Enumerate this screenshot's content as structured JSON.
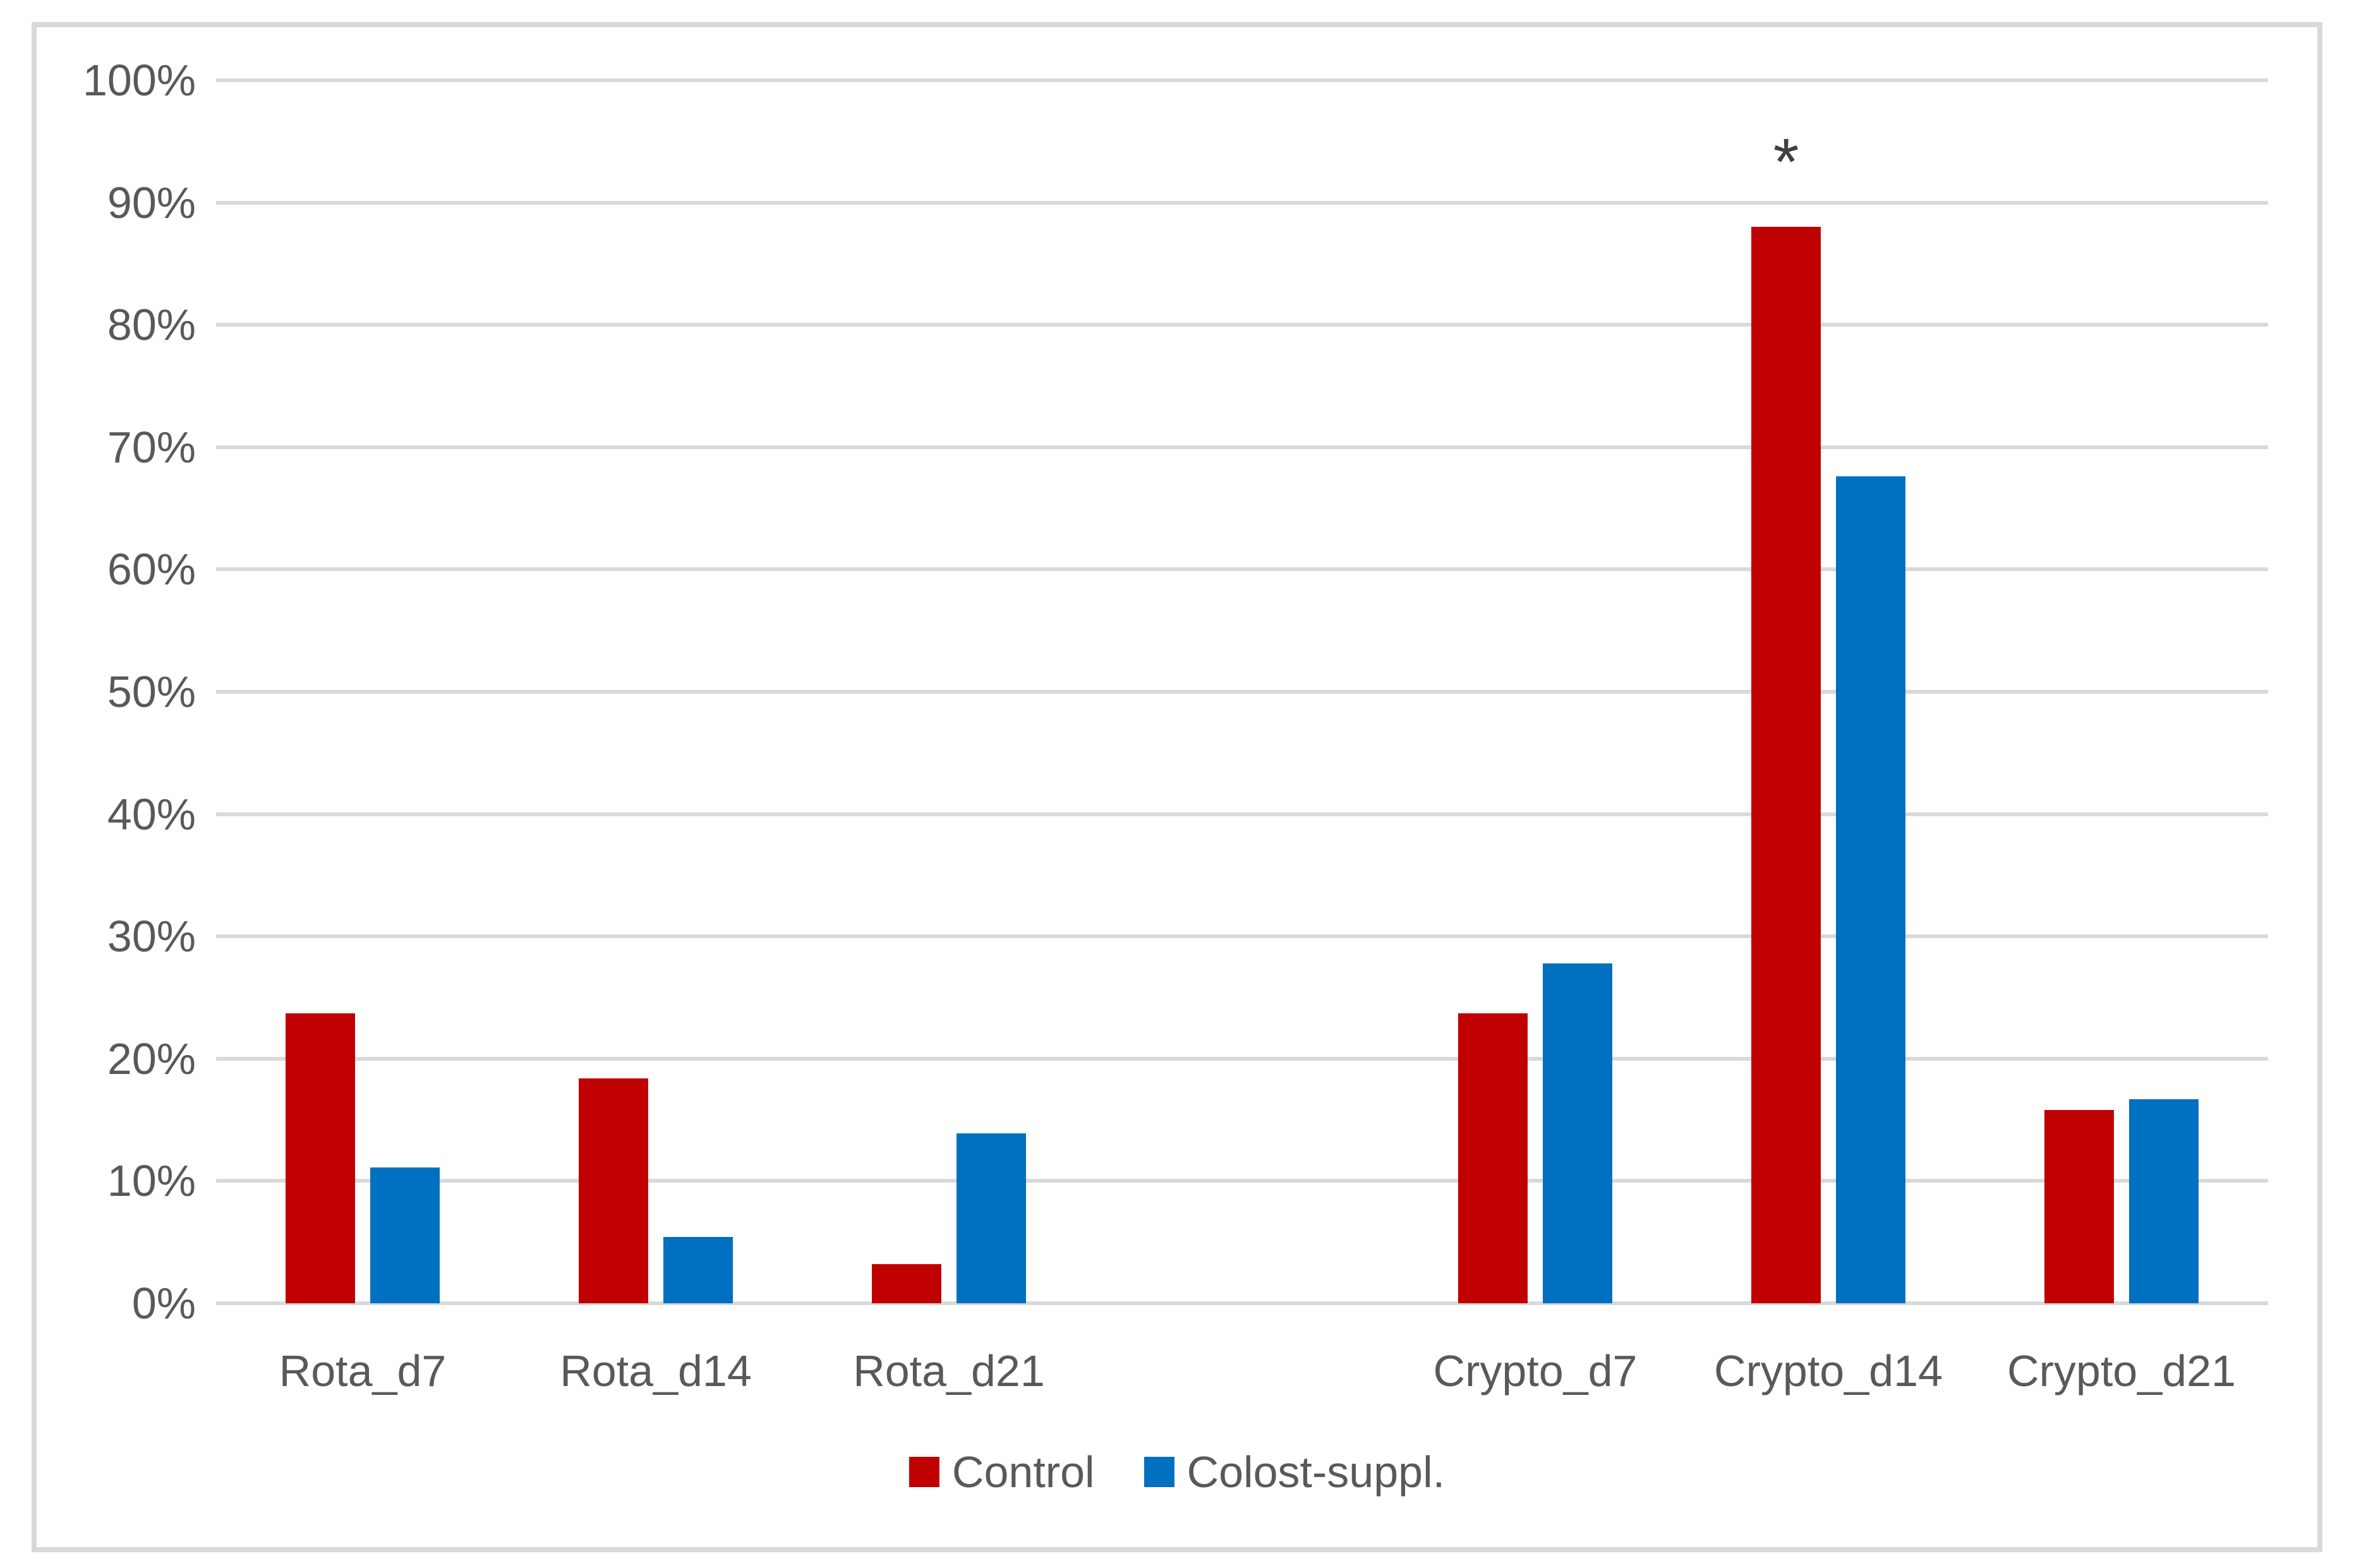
{
  "chart_data": {
    "type": "bar",
    "title": "",
    "xlabel": "",
    "ylabel": "",
    "categories": [
      "Rota_d7",
      "Rota_d14",
      "Rota_d21",
      "",
      "Crypto_d7",
      "Crypto_d14",
      "Crypto_d21"
    ],
    "series": [
      {
        "name": "Control",
        "color": "#C00000",
        "values": [
          23.7,
          18.4,
          3.2,
          null,
          23.7,
          88.0,
          15.8
        ]
      },
      {
        "name": "Colost-suppl.",
        "color": "#0070C0",
        "values": [
          11.1,
          5.4,
          13.9,
          null,
          27.8,
          67.6,
          16.7
        ]
      }
    ],
    "y_axis": {
      "min": 0,
      "max": 100,
      "step": 10,
      "tick_labels_top_to_bottom": [
        "100%",
        "90%",
        "80%",
        "70%",
        "60%",
        "50%",
        "40%",
        "30%",
        "20%",
        "10%",
        "0%"
      ],
      "unit": "%"
    },
    "grid": true,
    "gridline_color": "#D9D9D9",
    "frame_color": "#D9D9D9",
    "text_color": "#595959",
    "legend_position": "bottom",
    "annotations": [
      {
        "text": "*",
        "category_index": 5,
        "series_index": 0,
        "category": "Crypto_d14",
        "series": "Control"
      }
    ]
  },
  "layout_note_values_are_percent": true
}
